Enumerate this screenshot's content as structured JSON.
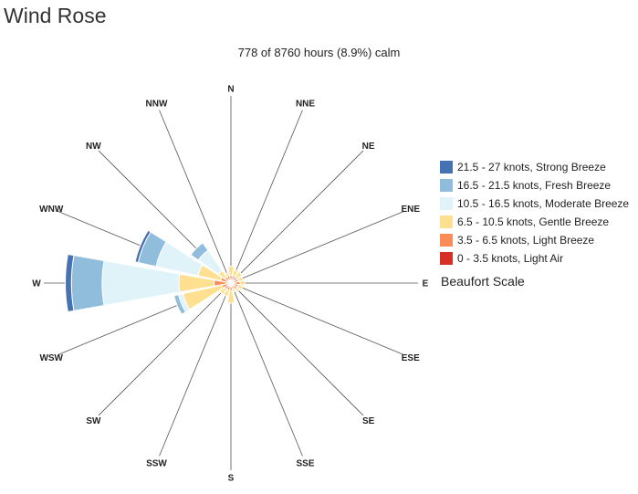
{
  "header": {
    "title": "Wind Rose",
    "subtitle": "778 of 8760 hours (8.9%) calm"
  },
  "legend": {
    "title": "Beaufort Scale",
    "items": [
      {
        "label": "21.5 - 27 knots, Strong Breeze",
        "color": "#4572b2"
      },
      {
        "label": "16.5 - 21.5 knots, Fresh Breeze",
        "color": "#91bddd"
      },
      {
        "label": "10.5 - 16.5 knots, Moderate Breeze",
        "color": "#e0f3f8"
      },
      {
        "label": "6.5 - 10.5 knots, Gentle Breeze",
        "color": "#fee090"
      },
      {
        "label": "3.5 - 6.5 knots, Light Breeze",
        "color": "#fc8d59"
      },
      {
        "label": "0 - 3.5 knots, Light Air",
        "color": "#d73027"
      }
    ]
  },
  "chart_data": {
    "type": "wind-rose",
    "title": "Wind Rose",
    "subtitle": "778 of 8760 hours (8.9%) calm",
    "directions": [
      "N",
      "NNE",
      "NE",
      "ENE",
      "E",
      "ESE",
      "SE",
      "SSE",
      "S",
      "SSW",
      "SW",
      "WSW",
      "W",
      "WNW",
      "NW",
      "NNW"
    ],
    "series": [
      {
        "name": "0 - 3.5 knots, Light Air",
        "color": "#d73027",
        "values": [
          0.2,
          0.2,
          0.2,
          0.2,
          0.2,
          0.2,
          0.2,
          0.2,
          0.2,
          0.2,
          0.2,
          0.2,
          0.3,
          0.2,
          0.2,
          0.2
        ]
      },
      {
        "name": "3.5 - 6.5 knots, Light Breeze",
        "color": "#fc8d59",
        "values": [
          0.3,
          0.3,
          0.3,
          0.3,
          0.4,
          0.3,
          0.3,
          0.2,
          0.3,
          0.3,
          0.3,
          0.4,
          0.8,
          0.5,
          0.3,
          0.3
        ]
      },
      {
        "name": "6.5 - 10.5 knots, Gentle Breeze",
        "color": "#fee090",
        "values": [
          0.6,
          0.4,
          0.4,
          0.3,
          0.3,
          0.3,
          0.2,
          0.2,
          0.8,
          0.4,
          0.4,
          2.6,
          2.3,
          1.5,
          0.5,
          0.2
        ]
      },
      {
        "name": "10.5 - 16.5 knots, Moderate Breeze",
        "color": "#e0f3f8",
        "values": [
          0,
          0,
          0,
          0,
          0,
          0,
          0,
          0,
          0,
          0,
          0,
          0.3,
          5.0,
          2.8,
          1.6,
          0
        ]
      },
      {
        "name": "16.5 - 21.5 knots, Fresh Breeze",
        "color": "#91bddd",
        "values": [
          0,
          0,
          0,
          0,
          0,
          0,
          0,
          0,
          0,
          0,
          0,
          0.3,
          2.0,
          1.2,
          0.6,
          0
        ]
      },
      {
        "name": "21.5 - 27 knots, Strong Breeze",
        "color": "#4572b2",
        "values": [
          0,
          0,
          0,
          0,
          0,
          0,
          0,
          0,
          0,
          0,
          0,
          0,
          0.4,
          0.2,
          0,
          0
        ]
      }
    ],
    "legend_title": "Beaufort Scale",
    "legend_position": "right"
  }
}
